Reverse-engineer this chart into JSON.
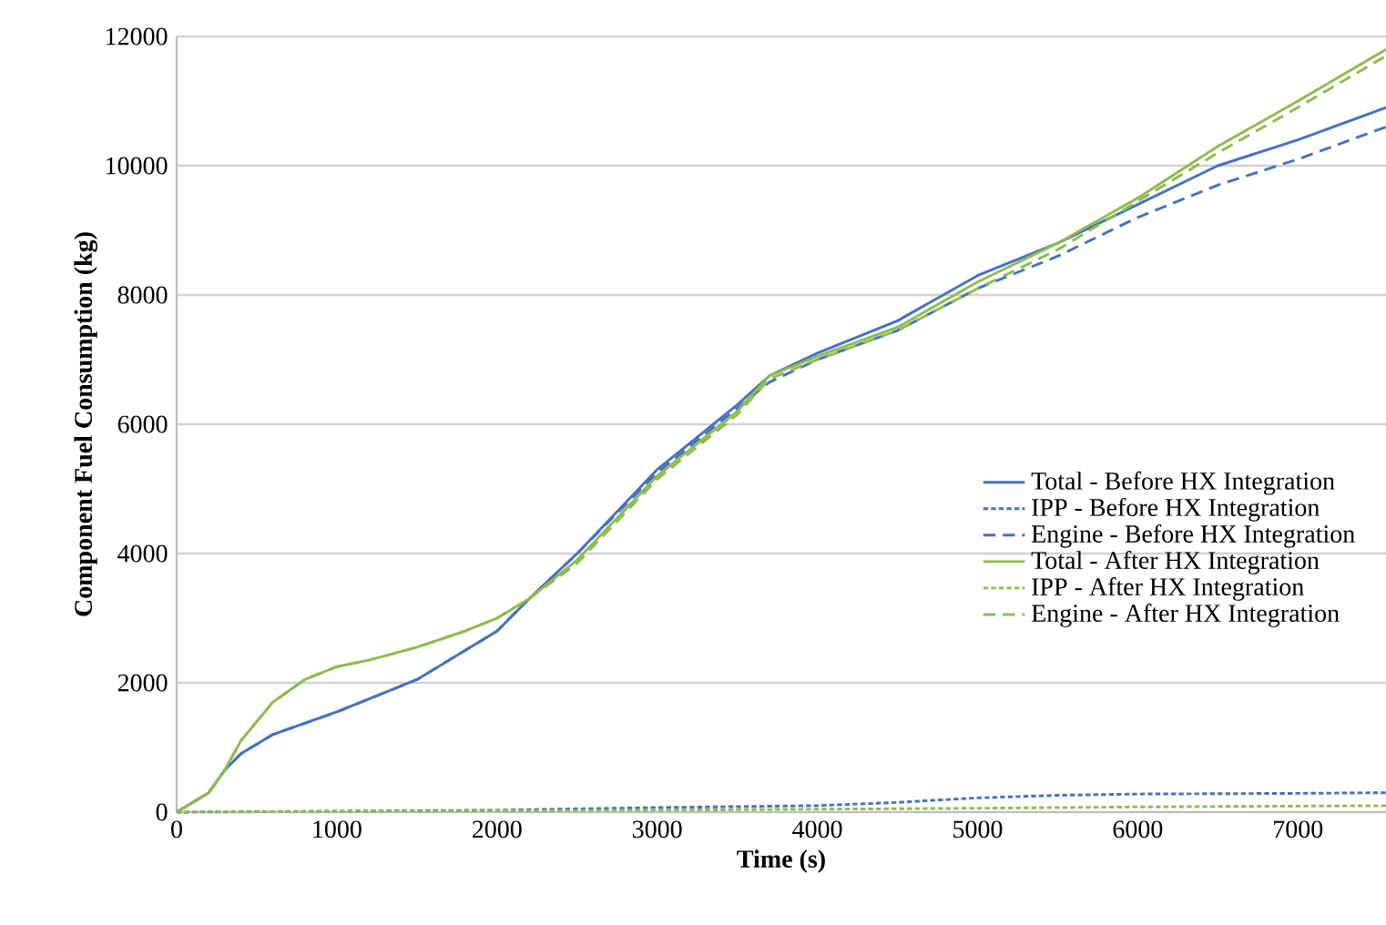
{
  "chart_data": {
    "type": "line",
    "xlabel": "Time (s)",
    "ylabel": "Component Fuel Consumption (kg)",
    "xlim": [
      0,
      7550
    ],
    "ylim": [
      0,
      12000
    ],
    "xticks": [
      0,
      1000,
      2000,
      3000,
      4000,
      5000,
      6000,
      7000
    ],
    "yticks": [
      0,
      2000,
      4000,
      6000,
      8000,
      10000,
      12000
    ],
    "grid": "y",
    "legend": "right",
    "marker": "none",
    "series": [
      {
        "name": "Total - Before HX Integration",
        "color": "#4472c4",
        "line_style": "solid",
        "x": [
          0,
          200,
          300,
          400,
          600,
          1000,
          1500,
          2000,
          2200,
          2500,
          3000,
          3500,
          3700,
          4000,
          4500,
          5000,
          5500,
          6000,
          6500,
          7000,
          7550
        ],
        "values": [
          0,
          300,
          650,
          900,
          1200,
          1550,
          2050,
          2800,
          3300,
          4000,
          5300,
          6300,
          6750,
          7100,
          7600,
          8300,
          8800,
          9400,
          10000,
          10400,
          10900
        ]
      },
      {
        "name": "IPP - Before HX Integration",
        "color": "#4472c4",
        "line_style": "dotted",
        "x": [
          0,
          2000,
          3000,
          4000,
          4500,
          5000,
          5500,
          6000,
          7000,
          7550
        ],
        "values": [
          0,
          30,
          70,
          100,
          150,
          220,
          260,
          280,
          290,
          300
        ]
      },
      {
        "name": "Engine - Before HX Integration",
        "color": "#4472c4",
        "line_style": "dashed",
        "x": [
          0,
          200,
          300,
          400,
          600,
          1000,
          1500,
          2000,
          2200,
          2500,
          3000,
          3500,
          3700,
          4000,
          4500,
          5000,
          5500,
          6000,
          6500,
          7000,
          7550
        ],
        "values": [
          0,
          300,
          650,
          900,
          1200,
          1550,
          2050,
          2800,
          3300,
          4000,
          5250,
          6250,
          6650,
          7000,
          7450,
          8100,
          8600,
          9200,
          9700,
          10100,
          10600
        ]
      },
      {
        "name": "Total - After HX Integration",
        "color": "#8fbc4f",
        "line_style": "solid",
        "x": [
          0,
          200,
          300,
          400,
          600,
          800,
          1000,
          1200,
          1500,
          1800,
          2000,
          2200,
          2500,
          3000,
          3500,
          3700,
          4000,
          4500,
          5000,
          5500,
          6000,
          6500,
          7000,
          7550
        ],
        "values": [
          0,
          300,
          650,
          1100,
          1700,
          2050,
          2250,
          2350,
          2550,
          2800,
          3000,
          3300,
          3900,
          5200,
          6200,
          6750,
          7050,
          7500,
          8200,
          8800,
          9500,
          10300,
          11000,
          11800
        ]
      },
      {
        "name": "IPP - After HX Integration",
        "color": "#8fbc4f",
        "line_style": "dotted",
        "x": [
          0,
          3000,
          5000,
          6000,
          7550
        ],
        "values": [
          0,
          30,
          60,
          80,
          100
        ]
      },
      {
        "name": "Engine - After HX Integration",
        "color": "#8fbc4f",
        "line_style": "dashed",
        "x": [
          0,
          200,
          300,
          400,
          600,
          800,
          1000,
          1200,
          1500,
          1800,
          2000,
          2200,
          2500,
          3000,
          3500,
          3700,
          4000,
          4500,
          5000,
          5500,
          6000,
          6500,
          7000,
          7550
        ],
        "values": [
          0,
          300,
          650,
          1100,
          1700,
          2050,
          2250,
          2350,
          2550,
          2800,
          3000,
          3300,
          3850,
          5150,
          6150,
          6700,
          7000,
          7450,
          8100,
          8700,
          9450,
          10200,
          10900,
          11700
        ]
      }
    ]
  }
}
